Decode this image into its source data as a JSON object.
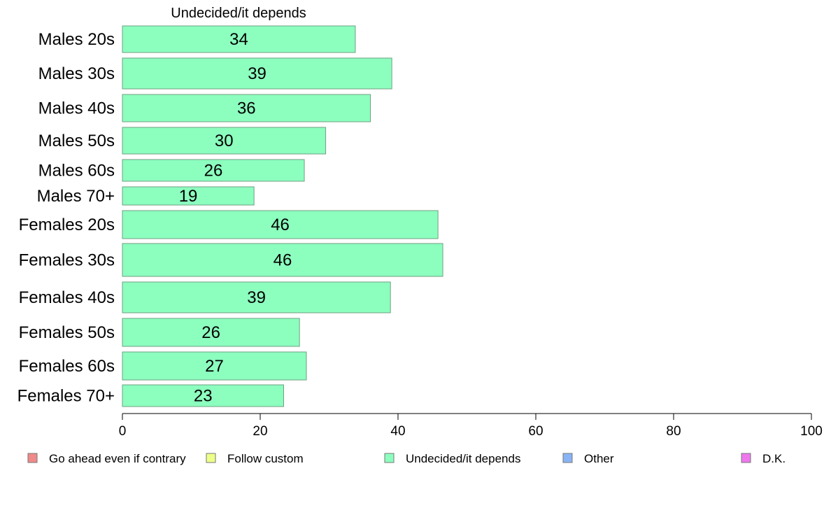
{
  "chart_data": {
    "type": "bar",
    "orientation": "horizontal",
    "title": "Undecided/it depends",
    "categories": [
      "Males 20s",
      "Males 30s",
      "Males 40s",
      "Males 50s",
      "Males 60s",
      "Males 70+",
      "Females 20s",
      "Females 30s",
      "Females 40s",
      "Females 50s",
      "Females 60s",
      "Females 70+"
    ],
    "values": [
      33.8,
      39.1,
      36.0,
      29.5,
      26.4,
      19.1,
      45.8,
      46.5,
      38.9,
      25.7,
      26.7,
      23.4
    ],
    "value_labels": [
      "34",
      "39",
      "36",
      "30",
      "26",
      "19",
      "46",
      "46",
      "39",
      "26",
      "27",
      "23"
    ],
    "bar_color": "#8cffbf",
    "xlim": [
      0,
      100
    ],
    "xticks": [
      0,
      20,
      40,
      60,
      80,
      100
    ],
    "grid": false,
    "legend_position": "bottom",
    "legend": [
      {
        "label": "Go ahead even if contrary",
        "color": "#f08a8a"
      },
      {
        "label": "Follow custom",
        "color": "#eeff88"
      },
      {
        "label": "Undecided/it depends",
        "color": "#8cffbf"
      },
      {
        "label": "Other",
        "color": "#88b4f5"
      },
      {
        "label": "D.K.",
        "color": "#ee77ee"
      }
    ]
  }
}
